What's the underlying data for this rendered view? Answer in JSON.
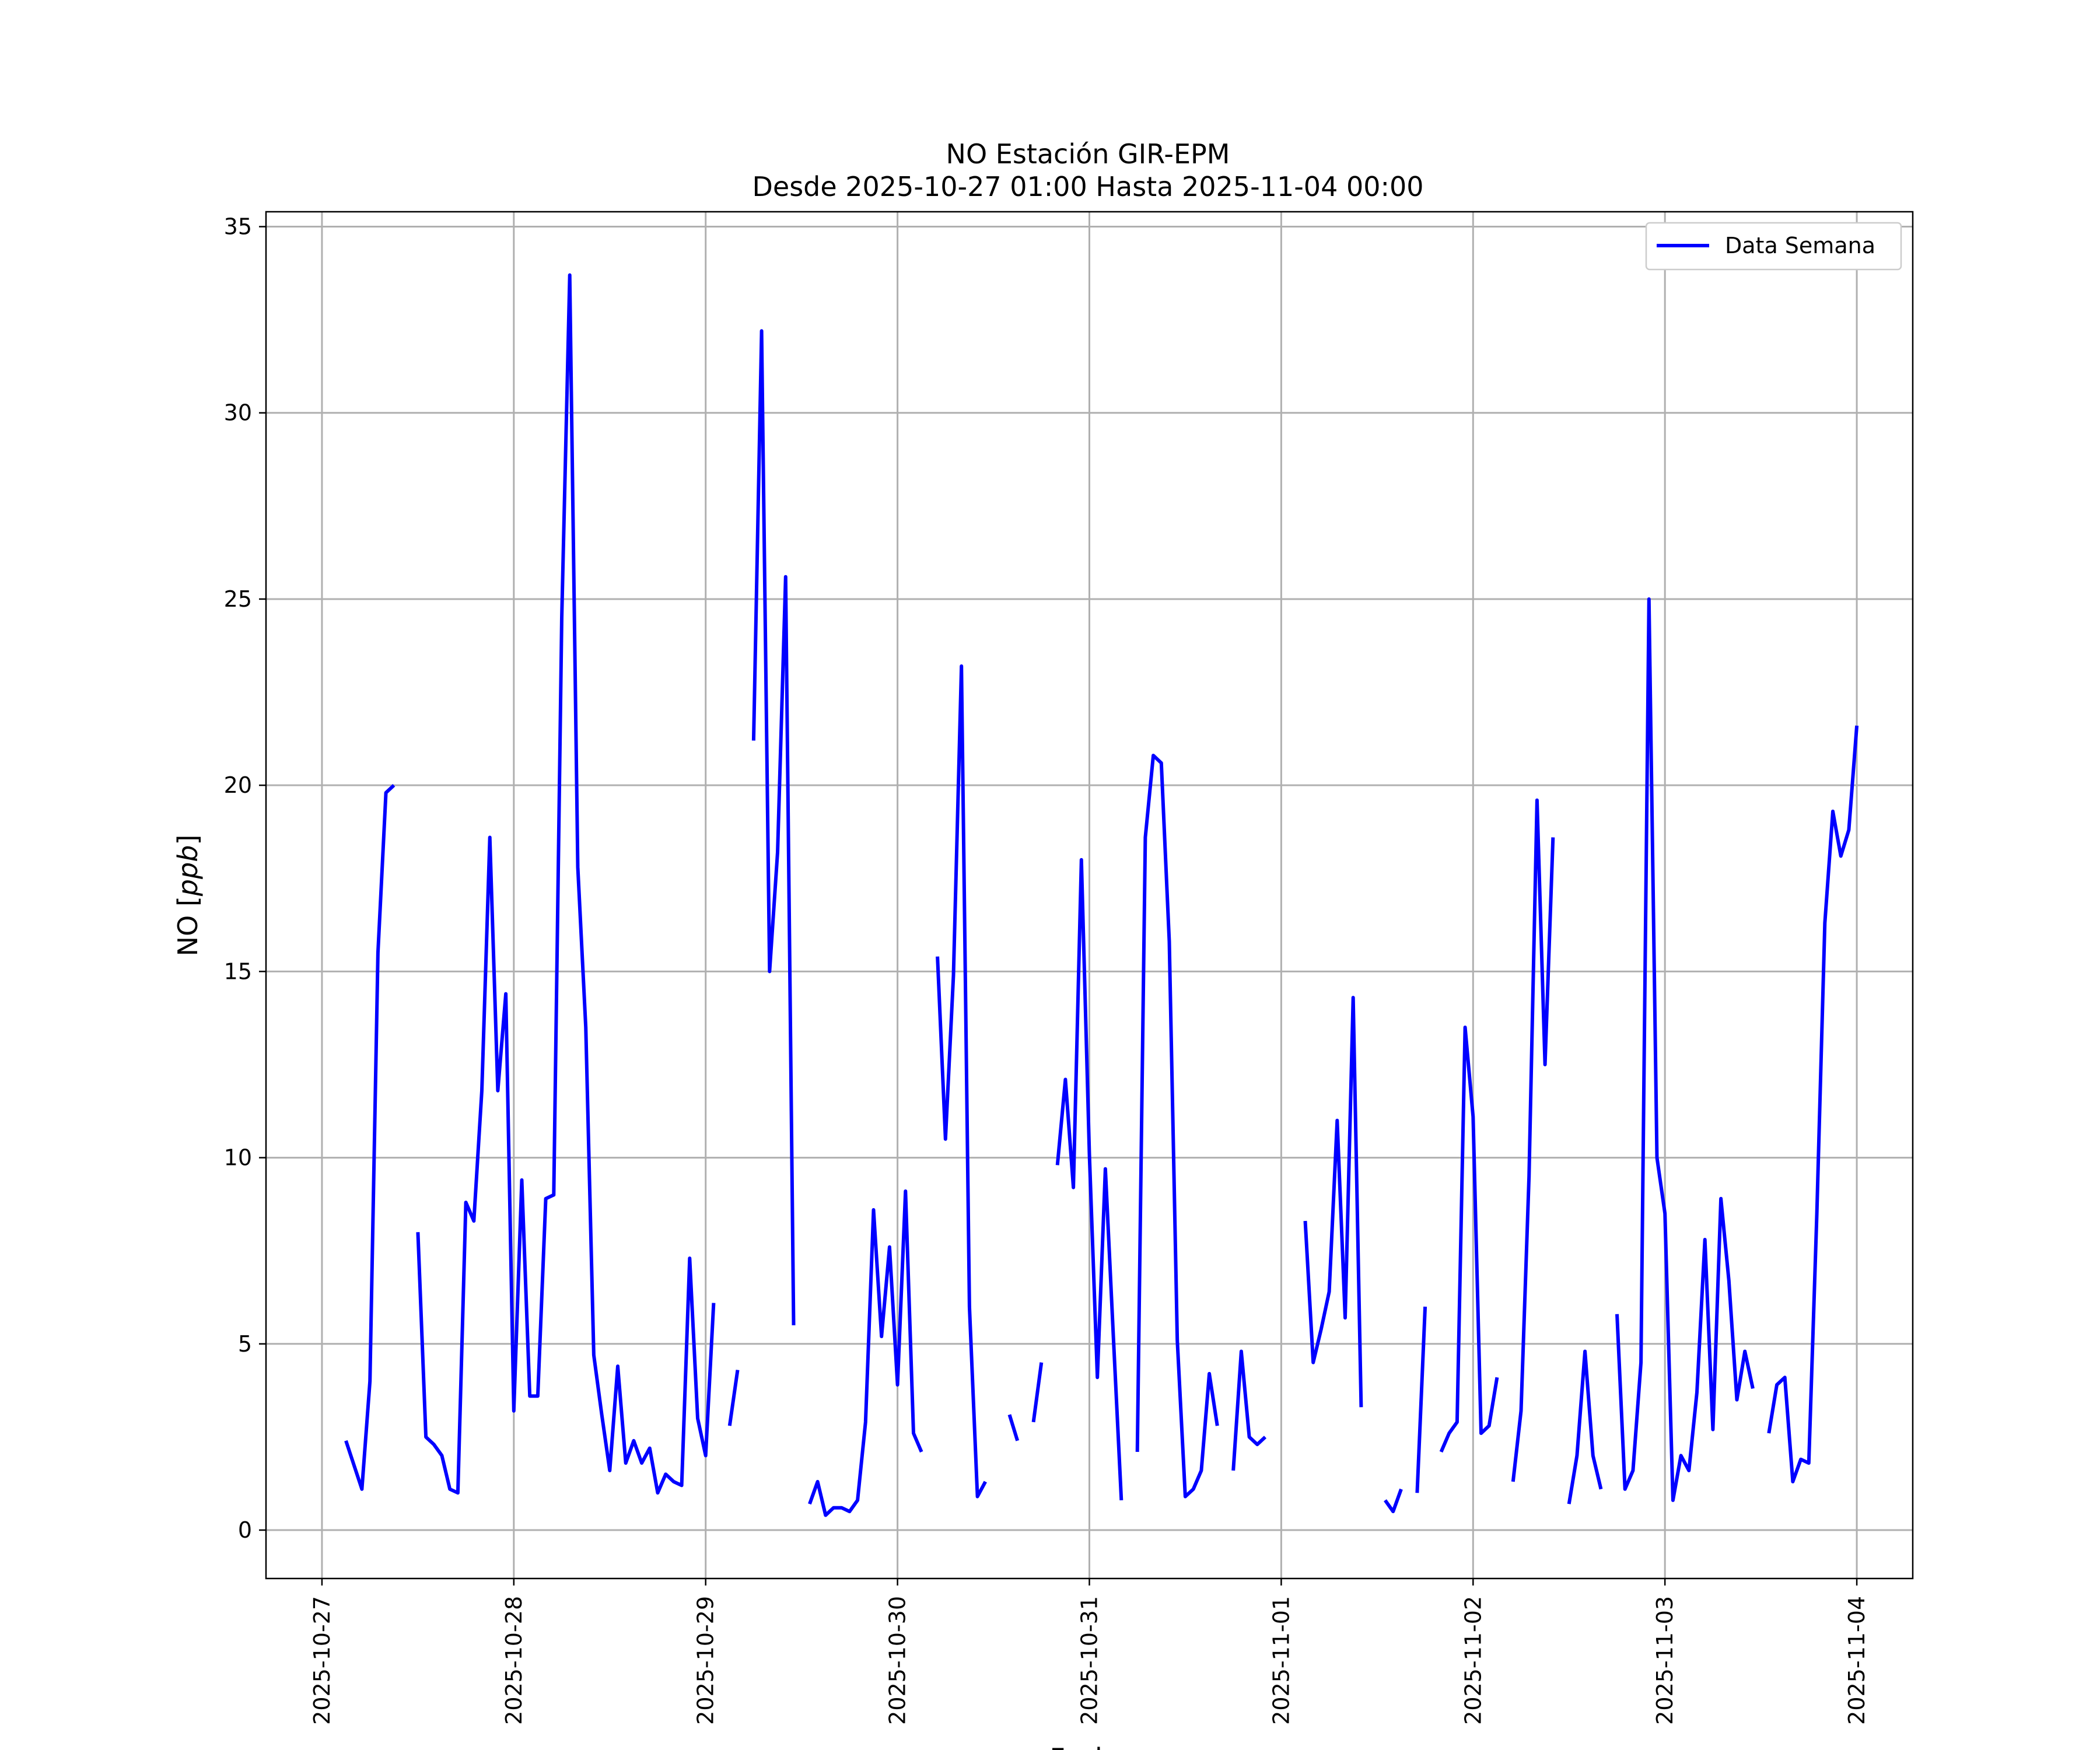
{
  "chart_data": {
    "type": "line",
    "title": "NO Estación GIR-EPM",
    "subtitle": "Desde 2025-10-27 01:00 Hasta 2025-11-04 00:00",
    "xlabel": "Fecha",
    "ylabel": "NO [ppb]",
    "ylim": [
      -1.3,
      35.4
    ],
    "xlim": [
      "2025-10-26 17:00",
      "2025-11-04 07:00"
    ],
    "x_ticks": [
      "2025-10-27",
      "2025-10-28",
      "2025-10-29",
      "2025-10-30",
      "2025-10-31",
      "2025-11-01",
      "2025-11-02",
      "2025-11-03",
      "2025-11-04"
    ],
    "y_ticks": [
      0,
      5,
      10,
      15,
      20,
      25,
      30,
      35
    ],
    "grid": true,
    "legend": {
      "position": "upper-right",
      "entries": [
        "Data Semana"
      ]
    },
    "series": [
      {
        "name": "Data Semana",
        "color": "#0000ff",
        "segments": [
          [
            [
              "2025-10-27 03:00",
              2.4
            ],
            [
              "2025-10-27 05:00",
              1.1
            ],
            [
              "2025-10-27 06:00",
              4.0
            ],
            [
              "2025-10-27 07:00",
              15.5
            ],
            [
              "2025-10-27 08:00",
              19.8
            ],
            [
              "2025-10-27 09:00",
              20.0
            ]
          ],
          [
            [
              "2025-10-27 12:00",
              8.0
            ],
            [
              "2025-10-27 13:00",
              2.5
            ],
            [
              "2025-10-27 14:00",
              2.3
            ],
            [
              "2025-10-27 15:00",
              2.0
            ],
            [
              "2025-10-27 16:00",
              1.1
            ],
            [
              "2025-10-27 17:00",
              1.0
            ],
            [
              "2025-10-27 18:00",
              8.8
            ],
            [
              "2025-10-27 19:00",
              8.3
            ],
            [
              "2025-10-27 20:00",
              11.8
            ],
            [
              "2025-10-27 21:00",
              18.6
            ],
            [
              "2025-10-27 22:00",
              11.8
            ],
            [
              "2025-10-27 23:00",
              14.4
            ],
            [
              "2025-10-28 00:00",
              3.2
            ],
            [
              "2025-10-28 01:00",
              9.4
            ],
            [
              "2025-10-28 02:00",
              3.6
            ],
            [
              "2025-10-28 03:00",
              3.6
            ],
            [
              "2025-10-28 04:00",
              8.9
            ],
            [
              "2025-10-28 05:00",
              9.0
            ],
            [
              "2025-10-28 06:00",
              24.5
            ],
            [
              "2025-10-28 07:00",
              33.7
            ],
            [
              "2025-10-28 08:00",
              17.8
            ],
            [
              "2025-10-28 09:00",
              13.5
            ],
            [
              "2025-10-28 10:00",
              4.7
            ],
            [
              "2025-10-28 11:00",
              3.1
            ],
            [
              "2025-10-28 12:00",
              1.6
            ],
            [
              "2025-10-28 13:00",
              4.4
            ],
            [
              "2025-10-28 14:00",
              1.8
            ],
            [
              "2025-10-28 15:00",
              2.4
            ],
            [
              "2025-10-28 16:00",
              1.8
            ],
            [
              "2025-10-28 17:00",
              2.2
            ],
            [
              "2025-10-28 18:00",
              1.0
            ],
            [
              "2025-10-28 19:00",
              1.5
            ],
            [
              "2025-10-28 20:00",
              1.3
            ],
            [
              "2025-10-28 21:00",
              1.2
            ],
            [
              "2025-10-28 22:00",
              7.3
            ],
            [
              "2025-10-28 23:00",
              3.0
            ],
            [
              "2025-10-29 00:00",
              2.0
            ],
            [
              "2025-10-29 01:00",
              6.1
            ]
          ],
          [
            [
              "2025-10-29 03:00",
              2.8
            ],
            [
              "2025-10-29 04:00",
              4.3
            ]
          ],
          [
            [
              "2025-10-29 06:00",
              21.2
            ],
            [
              "2025-10-29 07:00",
              32.2
            ],
            [
              "2025-10-29 08:00",
              15.0
            ],
            [
              "2025-10-29 09:00",
              18.2
            ],
            [
              "2025-10-29 10:00",
              25.6
            ],
            [
              "2025-10-29 11:00",
              5.5
            ]
          ],
          [
            [
              "2025-10-29 13:00",
              0.7
            ],
            [
              "2025-10-29 14:00",
              1.3
            ],
            [
              "2025-10-29 15:00",
              0.4
            ],
            [
              "2025-10-29 16:00",
              0.6
            ],
            [
              "2025-10-29 17:00",
              0.6
            ],
            [
              "2025-10-29 18:00",
              0.5
            ],
            [
              "2025-10-29 19:00",
              0.8
            ],
            [
              "2025-10-29 20:00",
              2.9
            ],
            [
              "2025-10-29 21:00",
              8.6
            ],
            [
              "2025-10-29 22:00",
              5.2
            ],
            [
              "2025-10-29 23:00",
              7.6
            ],
            [
              "2025-10-30 00:00",
              3.9
            ],
            [
              "2025-10-30 01:00",
              9.1
            ],
            [
              "2025-10-30 02:00",
              2.6
            ],
            [
              "2025-10-30 03:00",
              2.1
            ]
          ],
          [
            [
              "2025-10-30 05:00",
              15.4
            ],
            [
              "2025-10-30 06:00",
              10.5
            ],
            [
              "2025-10-30 07:00",
              14.9
            ],
            [
              "2025-10-30 08:00",
              23.2
            ],
            [
              "2025-10-30 09:00",
              6.0
            ],
            [
              "2025-10-30 10:00",
              0.9
            ],
            [
              "2025-10-30 11:00",
              1.3
            ]
          ],
          [
            [
              "2025-10-30 14:00",
              3.1
            ],
            [
              "2025-10-30 15:00",
              2.4
            ]
          ],
          [
            [
              "2025-10-30 17:00",
              2.9
            ],
            [
              "2025-10-30 18:00",
              4.5
            ]
          ],
          [
            [
              "2025-10-30 20:00",
              9.8
            ],
            [
              "2025-10-30 21:00",
              12.1
            ],
            [
              "2025-10-30 22:00",
              9.2
            ],
            [
              "2025-10-30 23:00",
              18.0
            ],
            [
              "2025-10-31 00:00",
              10.1
            ],
            [
              "2025-10-31 01:00",
              4.1
            ],
            [
              "2025-10-31 02:00",
              9.7
            ],
            [
              "2025-10-31 03:00",
              5.2
            ],
            [
              "2025-10-31 04:00",
              0.8
            ]
          ],
          [
            [
              "2025-10-31 06:00",
              2.1
            ],
            [
              "2025-10-31 07:00",
              18.6
            ],
            [
              "2025-10-31 08:00",
              20.8
            ],
            [
              "2025-10-31 09:00",
              20.6
            ],
            [
              "2025-10-31 10:00",
              15.8
            ],
            [
              "2025-10-31 11:00",
              5.1
            ],
            [
              "2025-10-31 12:00",
              0.9
            ],
            [
              "2025-10-31 13:00",
              1.1
            ],
            [
              "2025-10-31 14:00",
              1.6
            ],
            [
              "2025-10-31 15:00",
              4.2
            ],
            [
              "2025-10-31 16:00",
              2.8
            ]
          ],
          [
            [
              "2025-10-31 18:00",
              1.6
            ],
            [
              "2025-10-31 19:00",
              4.8
            ],
            [
              "2025-10-31 20:00",
              2.5
            ],
            [
              "2025-10-31 21:00",
              2.3
            ],
            [
              "2025-10-31 22:00",
              2.5
            ]
          ],
          [
            [
              "2025-11-01 03:00",
              8.3
            ],
            [
              "2025-11-01 04:00",
              4.5
            ],
            [
              "2025-11-01 05:00",
              5.4
            ],
            [
              "2025-11-01 06:00",
              6.4
            ],
            [
              "2025-11-01 07:00",
              11.0
            ],
            [
              "2025-11-01 08:00",
              5.7
            ],
            [
              "2025-11-01 09:00",
              14.3
            ],
            [
              "2025-11-01 10:00",
              3.3
            ]
          ],
          [
            [
              "2025-11-01 13:00",
              0.8
            ],
            [
              "2025-11-01 14:00",
              0.5
            ],
            [
              "2025-11-01 15:00",
              1.1
            ]
          ],
          [
            [
              "2025-11-01 17:00",
              1.0
            ],
            [
              "2025-11-01 18:00",
              6.0
            ]
          ],
          [
            [
              "2025-11-01 20:00",
              2.1
            ],
            [
              "2025-11-01 21:00",
              2.6
            ],
            [
              "2025-11-01 22:00",
              2.9
            ],
            [
              "2025-11-01 23:00",
              13.5
            ],
            [
              "2025-11-02 00:00",
              11.1
            ],
            [
              "2025-11-02 01:00",
              2.6
            ],
            [
              "2025-11-02 02:00",
              2.8
            ],
            [
              "2025-11-02 03:00",
              4.1
            ]
          ],
          [
            [
              "2025-11-02 05:00",
              1.3
            ],
            [
              "2025-11-02 06:00",
              3.2
            ],
            [
              "2025-11-02 07:00",
              9.5
            ],
            [
              "2025-11-02 08:00",
              19.6
            ],
            [
              "2025-11-02 09:00",
              12.5
            ],
            [
              "2025-11-02 10:00",
              18.6
            ]
          ],
          [
            [
              "2025-11-02 12:00",
              0.7
            ],
            [
              "2025-11-02 13:00",
              2.0
            ],
            [
              "2025-11-02 14:00",
              4.8
            ],
            [
              "2025-11-02 15:00",
              2.0
            ],
            [
              "2025-11-02 16:00",
              1.1
            ]
          ],
          [
            [
              "2025-11-02 18:00",
              5.8
            ],
            [
              "2025-11-02 19:00",
              1.1
            ],
            [
              "2025-11-02 20:00",
              1.6
            ],
            [
              "2025-11-02 21:00",
              4.5
            ],
            [
              "2025-11-02 22:00",
              25.0
            ],
            [
              "2025-11-02 23:00",
              10.0
            ],
            [
              "2025-11-03 00:00",
              8.5
            ],
            [
              "2025-11-03 01:00",
              0.8
            ],
            [
              "2025-11-03 02:00",
              2.0
            ],
            [
              "2025-11-03 03:00",
              1.6
            ],
            [
              "2025-11-03 04:00",
              3.7
            ],
            [
              "2025-11-03 05:00",
              7.8
            ],
            [
              "2025-11-03 06:00",
              2.7
            ],
            [
              "2025-11-03 07:00",
              8.9
            ],
            [
              "2025-11-03 08:00",
              6.7
            ],
            [
              "2025-11-03 09:00",
              3.5
            ],
            [
              "2025-11-03 10:00",
              4.8
            ],
            [
              "2025-11-03 11:00",
              3.8
            ]
          ],
          [
            [
              "2025-11-03 13:00",
              2.6
            ],
            [
              "2025-11-03 14:00",
              3.9
            ],
            [
              "2025-11-03 15:00",
              4.1
            ],
            [
              "2025-11-03 16:00",
              1.3
            ],
            [
              "2025-11-03 17:00",
              1.9
            ],
            [
              "2025-11-03 18:00",
              1.8
            ],
            [
              "2025-11-03 19:00",
              8.5
            ],
            [
              "2025-11-03 20:00",
              16.3
            ],
            [
              "2025-11-03 21:00",
              19.3
            ],
            [
              "2025-11-03 22:00",
              18.1
            ],
            [
              "2025-11-03 23:00",
              18.8
            ],
            [
              "2025-11-04 00:00",
              21.6
            ]
          ]
        ]
      }
    ]
  }
}
